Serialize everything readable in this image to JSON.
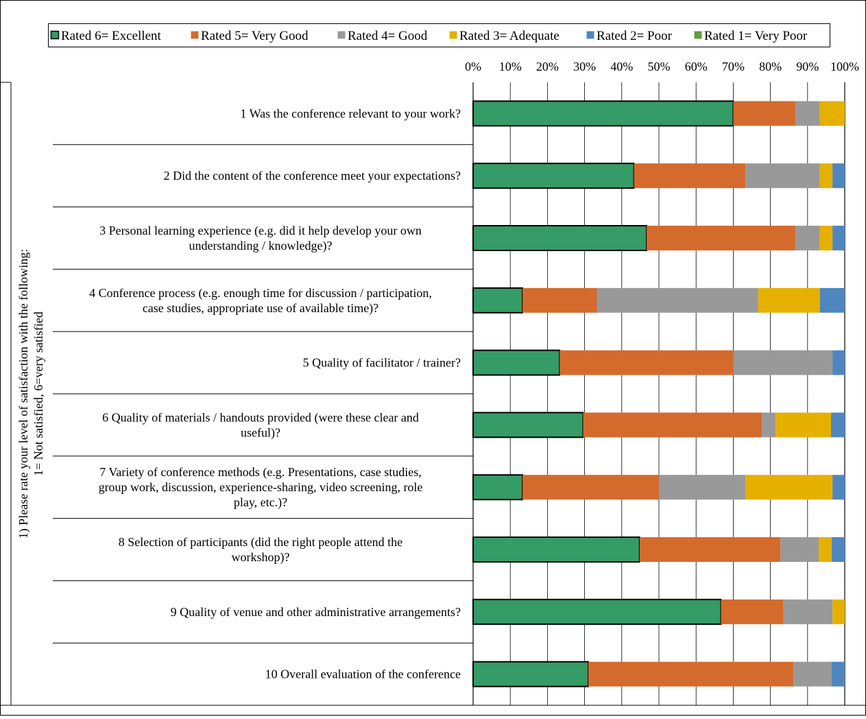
{
  "chart_data": {
    "type": "bar",
    "orientation": "horizontal",
    "stacked": "percent",
    "ylabel": "1) Please rate your level of satisfaction with the following:\n1= Not satisfied, 6=very satisfied",
    "xlim": [
      0,
      100
    ],
    "x_ticks": [
      "0%",
      "10%",
      "20%",
      "30%",
      "40%",
      "50%",
      "60%",
      "70%",
      "80%",
      "90%",
      "100%"
    ],
    "x_axis_position": "top",
    "grid": true,
    "legend_position": "top",
    "categories": [
      "1 Was the conference relevant to your work?",
      "2 Did the content of the conference meet your expectations?",
      "3 Personal learning experience (e.g. did it help develop your own understanding / knowledge)?",
      "4 Conference process (e.g. enough time for discussion / participation, case studies, appropriate use of available time)?",
      "5 Quality of facilitator / trainer?",
      "6 Quality of materials / handouts provided (were these clear and useful)?",
      "7 Variety of conference methods (e.g. Presentations, case studies, group work, discussion, experience-sharing, video screening, role play, etc.)?",
      "8 Selection of participants (did the right people attend the workshop)?",
      "9 Quality of venue and other administrative arrangements?",
      "10 Overall evaluation of the conference"
    ],
    "category_lines": [
      [
        "1 Was the conference relevant to your work?"
      ],
      [
        "2 Did the content of the conference meet your expectations?"
      ],
      [
        "3 Personal learning experience (e.g. did it help develop your own",
        "understanding / knowledge)?"
      ],
      [
        "4 Conference process (e.g. enough time for discussion / participation,",
        "case studies, appropriate use of available time)?"
      ],
      [
        "5 Quality of facilitator / trainer?"
      ],
      [
        "6 Quality of materials / handouts provided (were these clear and",
        "useful)?"
      ],
      [
        "7 Variety of conference methods (e.g. Presentations, case studies,",
        "group work, discussion, experience-sharing, video screening, role",
        "play, etc.)?"
      ],
      [
        "8 Selection of participants (did the right people attend the",
        "workshop)?"
      ],
      [
        "9 Quality of venue and other administrative arrangements?"
      ],
      [
        "10 Overall evaluation of the conference"
      ]
    ],
    "series": [
      {
        "name": "Rated 6= Excellent",
        "color": "#359b67",
        "values": [
          70,
          43.3,
          46.7,
          13.3,
          23.3,
          29.6,
          13.3,
          44.8,
          66.7,
          31
        ]
      },
      {
        "name": "Rated 5= Very Good",
        "color": "#d46b2d",
        "values": [
          16.7,
          30,
          40,
          20,
          46.7,
          48.1,
          36.7,
          37.9,
          16.7,
          55.2
        ]
      },
      {
        "name": "Rated 4= Good",
        "color": "#999999",
        "values": [
          6.6,
          20,
          6.6,
          43.4,
          26.7,
          3.7,
          23.3,
          10.3,
          13.3,
          10.3
        ]
      },
      {
        "name": "Rated 3= Adequate",
        "color": "#e6b000",
        "values": [
          6.7,
          3.4,
          3.4,
          16.6,
          0,
          14.9,
          23.4,
          3.5,
          3.3,
          0
        ]
      },
      {
        "name": "Rated 2= Poor",
        "color": "#4f86c0",
        "values": [
          0,
          3.3,
          3.3,
          6.7,
          3.3,
          3.7,
          3.3,
          3.5,
          0,
          3.5
        ]
      },
      {
        "name": "Rated 1= Very Poor",
        "color": "#5c9e3c",
        "values": [
          0,
          0,
          0,
          0,
          0,
          0,
          0,
          0,
          0,
          0
        ]
      }
    ]
  }
}
